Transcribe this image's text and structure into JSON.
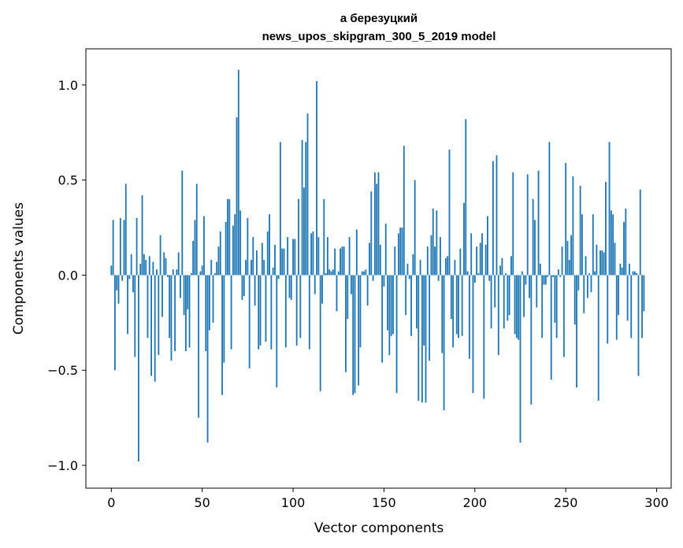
{
  "chart_data": {
    "type": "bar",
    "title_line1": "а березуцкий",
    "title_line2": "news_upos_skipgram_300_5_2019 model",
    "xlabel": "Vector components",
    "ylabel": "Components values",
    "xlim": [
      -14,
      308
    ],
    "ylim": [
      -1.12,
      1.19
    ],
    "xticks": [
      0,
      50,
      100,
      150,
      200,
      250,
      300
    ],
    "xtick_labels": [
      "0",
      "50",
      "100",
      "150",
      "200",
      "250",
      "300"
    ],
    "yticks": [
      -1.0,
      -0.5,
      0.0,
      0.5,
      1.0
    ],
    "ytick_labels": [
      "−1.0",
      "−0.5",
      "0.0",
      "0.5",
      "1.0"
    ],
    "bar_color": "#1f77b4",
    "grid": false,
    "legend": "none",
    "values": [
      0.05,
      0.29,
      -0.5,
      -0.08,
      -0.15,
      0.3,
      -0.03,
      0.29,
      0.48,
      -0.31,
      -0.02,
      0.11,
      -0.09,
      -0.43,
      0.3,
      -0.98,
      0.06,
      0.42,
      0.11,
      0.08,
      -0.33,
      0.1,
      -0.53,
      0.07,
      -0.56,
      0.03,
      -0.42,
      0.21,
      -0.22,
      0.12,
      0.09,
      -0.01,
      -0.33,
      -0.45,
      0.03,
      -0.4,
      0.03,
      0.12,
      -0.12,
      0.55,
      -0.21,
      -0.4,
      -0.18,
      -0.38,
      0.01,
      0.18,
      0.29,
      0.48,
      -0.75,
      0.02,
      0.05,
      0.31,
      -0.4,
      -0.88,
      -0.29,
      0.08,
      -0.25,
      0.01,
      0.07,
      0.15,
      0.23,
      -0.63,
      -0.46,
      0.28,
      0.4,
      0.4,
      -0.39,
      0.26,
      0.32,
      0.83,
      1.08,
      0.34,
      -0.13,
      -0.11,
      0.08,
      0.3,
      -0.49,
      0.08,
      0.2,
      -0.16,
      0.13,
      -0.39,
      -0.37,
      0.17,
      0.08,
      -0.35,
      0.23,
      0.32,
      -0.39,
      0.04,
      0.16,
      -0.59,
      -0.02,
      0.7,
      0.14,
      0.14,
      -0.38,
      0.2,
      -0.12,
      -0.13,
      0.19,
      0.19,
      -0.37,
      0.4,
      -0.33,
      0.71,
      0.46,
      0.7,
      0.85,
      -0.39,
      0.22,
      0.23,
      -0.1,
      1.02,
      0.2,
      -0.61,
      -0.15,
      0.4,
      0.01,
      0.2,
      0.03,
      0.02,
      0.03,
      0.14,
      -0.19,
      0.02,
      0.14,
      0.15,
      0.15,
      -0.51,
      -0.23,
      0.2,
      -0.1,
      -0.63,
      -0.62,
      0.24,
      -0.58,
      -0.38,
      0.02,
      0.02,
      0.03,
      -0.16,
      0.17,
      0.44,
      -0.03,
      0.54,
      0.48,
      0.54,
      0.16,
      -0.46,
      -0.06,
      0.27,
      -0.29,
      -0.42,
      -0.32,
      -0.31,
      0.15,
      -0.62,
      0.22,
      0.25,
      0.25,
      0.68,
      -0.21,
      0.06,
      -0.02,
      -0.32,
      0.11,
      0.5,
      -0.28,
      -0.66,
      0.08,
      -0.67,
      -0.37,
      -0.67,
      0.15,
      -0.45,
      0.21,
      0.35,
      0.15,
      0.34,
      -0.03,
      0.2,
      -0.41,
      -0.71,
      0.09,
      0.1,
      0.66,
      -0.23,
      -0.38,
      0.08,
      -0.31,
      -0.33,
      0.14,
      -0.32,
      0.38,
      0.82,
      0.02,
      -0.44,
      0.22,
      -0.62,
      -0.04,
      0.15,
      0.01,
      0.17,
      0.22,
      -0.65,
      0.16,
      0.31,
      -0.03,
      -0.28,
      0.6,
      -0.17,
      0.63,
      -0.42,
      0.05,
      0.09,
      -0.28,
      0.01,
      -0.24,
      -0.21,
      0.1,
      0.54,
      -0.31,
      -0.33,
      -0.34,
      -0.88,
      0.02,
      -0.22,
      -0.05,
      0.53,
      -0.12,
      -0.68,
      0.4,
      0.29,
      -0.17,
      0.55,
      0.06,
      -0.33,
      -0.05,
      -0.05,
      -0.01,
      0.7,
      -0.55,
      -0.01,
      -0.25,
      -0.33,
      0.03,
      -0.01,
      0.15,
      -0.43,
      0.59,
      0.18,
      0.08,
      0.21,
      0.52,
      -0.26,
      -0.59,
      -0.08,
      0.47,
      0.32,
      -0.2,
      0.1,
      -0.12,
      0.01,
      -0.09,
      0.32,
      0.02,
      0.16,
      -0.66,
      0.13,
      0.13,
      0.12,
      0.49,
      -0.36,
      0.7,
      0.34,
      0.32,
      0.17,
      -0.34,
      -0.21,
      0.06,
      0.04,
      0.28,
      0.35,
      -0.24,
      0.06,
      -0.33,
      0.02,
      0.02,
      0.01,
      -0.53,
      0.45,
      -0.33,
      -0.19
    ]
  }
}
